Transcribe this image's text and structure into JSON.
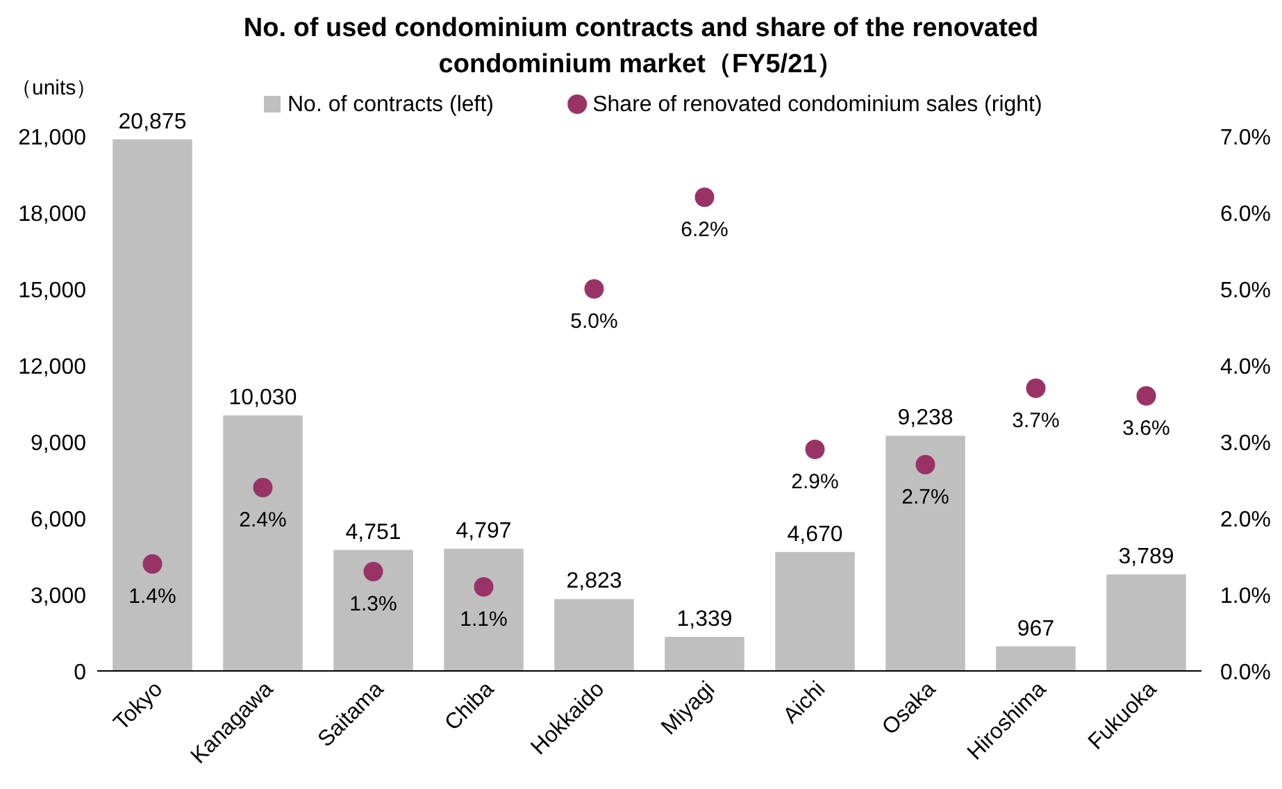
{
  "chart_data": {
    "type": "bar",
    "title": "No. of used condominium contracts and share of the renovated condominium market（FY5/21）",
    "ylabel": "（units）",
    "categories": [
      "Tokyo",
      "Kanagawa",
      "Saitama",
      "Chiba",
      "Hokkaido",
      "Miyagi",
      "Aichi",
      "Osaka",
      "Hiroshima",
      "Fukuoka"
    ],
    "series": [
      {
        "name": "No. of contracts (left)",
        "color": "#bfbfbf",
        "values": [
          20875,
          10030,
          4751,
          4797,
          2823,
          1339,
          4670,
          9238,
          967,
          3789
        ],
        "value_labels": [
          "20,875",
          "10,030",
          "4,751",
          "4,797",
          "2,823",
          "1,339",
          "4,670",
          "9,238",
          "967",
          "3,789"
        ]
      },
      {
        "name": "Share of renovated condominium sales (right)",
        "type": "scatter",
        "axis": "y2",
        "color": "#993366",
        "values": [
          1.4,
          2.4,
          1.3,
          1.1,
          5.0,
          6.2,
          2.9,
          2.7,
          3.7,
          3.6
        ],
        "value_labels": [
          "1.4%",
          "2.4%",
          "1.3%",
          "1.1%",
          "5.0%",
          "6.2%",
          "2.9%",
          "2.7%",
          "3.7%",
          "3.6%"
        ]
      }
    ],
    "ylim": [
      0,
      21000
    ],
    "yticks": [
      0,
      {
        "value": 3000,
        "label": "3,000"
      },
      {
        "value": 6000,
        "label": "6,000"
      },
      {
        "value": 9000,
        "label": "9,000"
      },
      {
        "value": 12000,
        "label": "12,000"
      },
      {
        "value": 15000,
        "label": "15,000"
      },
      {
        "value": 18000,
        "label": "18,000"
      },
      {
        "value": 21000,
        "label": "21,000"
      }
    ],
    "y2lim": [
      0,
      7
    ],
    "y2ticks": [
      {
        "value": 0,
        "label": "0.0%"
      },
      {
        "value": 1,
        "label": "1.0%"
      },
      {
        "value": 2,
        "label": "2.0%"
      },
      {
        "value": 3,
        "label": "3.0%"
      },
      {
        "value": 4,
        "label": "4.0%"
      },
      {
        "value": 5,
        "label": "5.0%"
      },
      {
        "value": 6,
        "label": "6.0%"
      },
      {
        "value": 7,
        "label": "7.0%"
      }
    ],
    "legend": "top",
    "marker": "circle",
    "grid": false
  }
}
